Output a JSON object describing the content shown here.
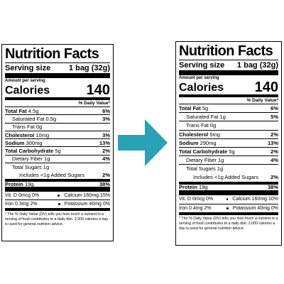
{
  "left_label": {
    "title": "Nutrition Facts",
    "serving_size_label": "Serving size",
    "serving_size": "1 bag (32g)",
    "amount_per_serving": "Amount per serving",
    "calories_label": "Calories",
    "calories": 140,
    "daily_value_header": "% Daily Value*",
    "nutrients": [
      {
        "name": "Total Fat",
        "amount": "4.5g",
        "dv": "6%"
      },
      {
        "name": "Saturated Fat",
        "amount": "0.5g",
        "dv": "3%"
      },
      {
        "name": "Trans Fat",
        "amount": "0g"
      },
      {
        "name": "Cholesterol",
        "amount": "10mg",
        "dv": "3%"
      },
      {
        "name": "Sodium",
        "amount": "300mg",
        "dv": "13%"
      },
      {
        "name": "Total Carbohydrate",
        "amount": "5g",
        "dv": "2%"
      },
      {
        "name": "Dietary Fiber",
        "amount": "1g",
        "dv": "4%"
      },
      {
        "name": "Total Sugars",
        "amount": "1g"
      },
      {
        "name": "Includes <1g Added Sugars",
        "amount": "",
        "dv": "2%"
      },
      {
        "name": "Protein",
        "amount": "19g",
        "dv": "38%"
      }
    ],
    "micronutrients": [
      [
        "Vit. D 0mcg 0%",
        "Calcium 160mg 15%"
      ],
      [
        "Iron 0.3mg 2%",
        "Potassium 40mg 0%"
      ]
    ],
    "footnote": "* The % Daily Value (DV) tells you how much a nutrient in a serving of food contributes to a daily diet. 2,000 calories a day is used for general nutrition advice."
  },
  "right_label": {
    "title": "Nutrition Facts",
    "serving_size_label": "Serving size",
    "serving_size": "1 bag (32g)",
    "amount_per_serving": "Amount per serving",
    "calories_label": "Calories",
    "calories": 140,
    "daily_value_header": "% Daily Value*",
    "nutrients": [
      {
        "name": "Total Fat",
        "amount": "5g",
        "dv": "6%"
      },
      {
        "name": "Saturated Fat",
        "amount": "1g",
        "dv": "5%"
      },
      {
        "name": "Trans Fat",
        "amount": "0g"
      },
      {
        "name": "Cholesterol",
        "amount": "5mg",
        "dv": "2%"
      },
      {
        "name": "Sodium",
        "amount": "290mg",
        "dv": "13%"
      },
      {
        "name": "Total Carbohydrate",
        "amount": "5g",
        "dv": "2%"
      },
      {
        "name": "Dietary Fiber",
        "amount": "1g",
        "dv": "4%"
      },
      {
        "name": "Total Sugars",
        "amount": "1g"
      },
      {
        "name": "Includes <1g Added Sugars",
        "amount": "",
        "dv": "2%"
      },
      {
        "name": "Protein",
        "amount": "19g",
        "dv": "38%"
      }
    ],
    "micronutrients": [
      [
        "Vit. D 0mcg 0%",
        "Calcium 160mg 10%"
      ],
      [
        "Iron 0.4mg 2%",
        "Potassium 40mg 0%"
      ]
    ],
    "footnote": "* The % Daily Value (DV) tells you how much a nutrient in a serving of food contributes to a daily diet. 2,000 calories a day is used for general nutrition advice."
  }
}
